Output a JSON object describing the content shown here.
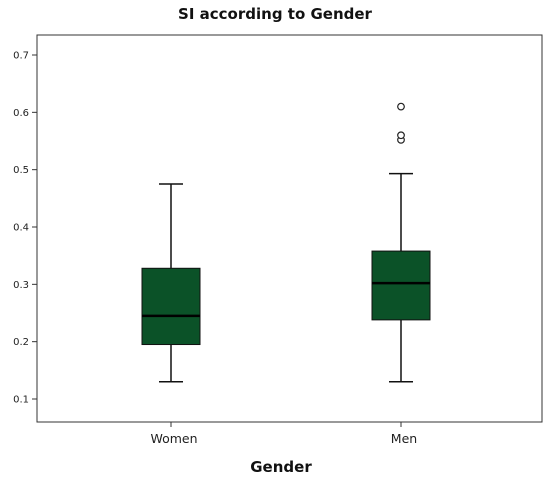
{
  "chart_data": {
    "type": "boxplot",
    "title": "SI according to Gender",
    "xlabel": "Gender",
    "ylabel": "",
    "ylim": [
      0.08,
      0.72
    ],
    "yticks": [
      "0.1",
      "0.2",
      "0.3",
      "0.4",
      "0.5",
      "0.6",
      "0.7"
    ],
    "categories": [
      "Women",
      "Men"
    ],
    "series": [
      {
        "category": "Women",
        "whisker_low": 0.13,
        "q1": 0.195,
        "median": 0.245,
        "q3": 0.328,
        "whisker_high": 0.475,
        "outliers": []
      },
      {
        "category": "Men",
        "whisker_low": 0.13,
        "q1": 0.238,
        "median": 0.302,
        "q3": 0.358,
        "whisker_high": 0.493,
        "outliers": [
          0.552,
          0.56,
          0.61
        ]
      }
    ],
    "box_color": "#0b5228",
    "grid": false
  }
}
